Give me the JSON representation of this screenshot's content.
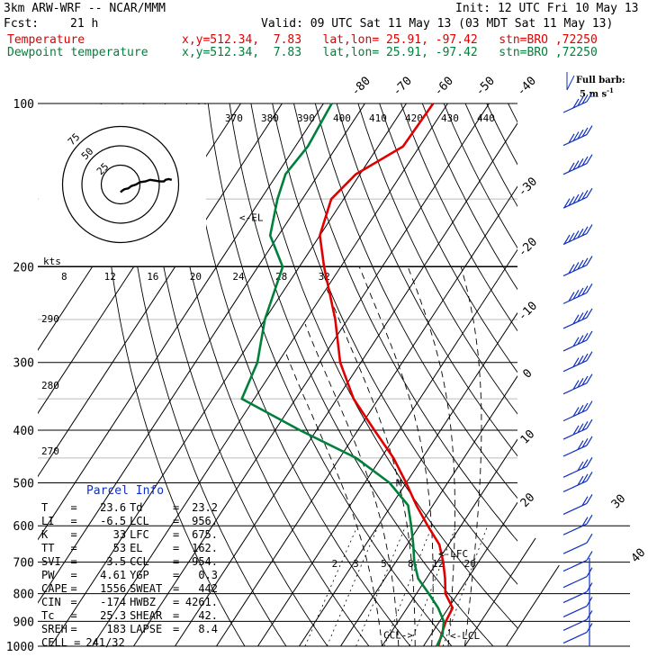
{
  "header": {
    "model": "3km ARW-WRF -- NCAR/MMM",
    "init": "Init: 12 UTC Fri 10 May 13",
    "fcst_label": "Fcst:",
    "fcst_value": "21 h",
    "valid": "Valid: 09 UTC Sat 11 May 13 (03 MDT Sat 11 May 13)",
    "temp_label": "Temperature",
    "dew_label": "Dewpoint temperature",
    "location": "x,y=512.34,  7.83   lat,lon= 25.91, -97.42   stn=BRO ,72250"
  },
  "barb_legend": {
    "line1": "Full barb:",
    "line2": "5 m s",
    "sup": "-1"
  },
  "chart_data": {
    "type": "line",
    "title": "",
    "y_axis": {
      "scale": "log",
      "label": "",
      "ticks": [
        100,
        200,
        300,
        400,
        500,
        600,
        700,
        800,
        900,
        1000
      ]
    },
    "isotherm_labels_top": [
      -80,
      -70,
      -60,
      -50,
      -40
    ],
    "isotherm_labels_right": [
      -30,
      -20,
      -10,
      0,
      10,
      20,
      30,
      40
    ],
    "theta_labels": [
      370,
      380,
      390,
      400,
      410,
      420,
      430,
      440
    ],
    "theta_labels_left": [
      290,
      280,
      270
    ],
    "mixing_ratio_labels": [
      2,
      3,
      5,
      8,
      12,
      20
    ],
    "series": [
      {
        "name": "Temperature",
        "color": "#e00000",
        "points": [
          {
            "p": 100,
            "t": -63.5
          },
          {
            "p": 120,
            "t": -64
          },
          {
            "p": 135,
            "t": -71
          },
          {
            "p": 150,
            "t": -73
          },
          {
            "p": 175,
            "t": -70
          },
          {
            "p": 200,
            "t": -64
          },
          {
            "p": 250,
            "t": -53
          },
          {
            "p": 300,
            "t": -45
          },
          {
            "p": 350,
            "t": -36
          },
          {
            "p": 400,
            "t": -26
          },
          {
            "p": 450,
            "t": -17
          },
          {
            "p": 500,
            "t": -10
          },
          {
            "p": 550,
            "t": -4
          },
          {
            "p": 600,
            "t": 2
          },
          {
            "p": 650,
            "t": 7.8
          },
          {
            "p": 700,
            "t": 11.5
          },
          {
            "p": 750,
            "t": 14.5
          },
          {
            "p": 800,
            "t": 17
          },
          {
            "p": 850,
            "t": 21
          },
          {
            "p": 900,
            "t": 21.5
          },
          {
            "p": 950,
            "t": 22.5
          },
          {
            "p": 1000,
            "t": 23.6
          }
        ]
      },
      {
        "name": "Dewpoint temperature",
        "color": "#00803a",
        "points": [
          {
            "p": 100,
            "t": -88
          },
          {
            "p": 120,
            "t": -87
          },
          {
            "p": 135,
            "t": -88
          },
          {
            "p": 150,
            "t": -86
          },
          {
            "p": 175,
            "t": -82
          },
          {
            "p": 200,
            "t": -74
          },
          {
            "p": 250,
            "t": -70
          },
          {
            "p": 300,
            "t": -65
          },
          {
            "p": 350,
            "t": -63
          },
          {
            "p": 400,
            "t": -44
          },
          {
            "p": 450,
            "t": -26
          },
          {
            "p": 500,
            "t": -14
          },
          {
            "p": 550,
            "t": -6
          },
          {
            "p": 600,
            "t": -2
          },
          {
            "p": 650,
            "t": 1.5
          },
          {
            "p": 700,
            "t": 4.5
          },
          {
            "p": 750,
            "t": 8
          },
          {
            "p": 800,
            "t": 13
          },
          {
            "p": 850,
            "t": 17.5
          },
          {
            "p": 900,
            "t": 21
          },
          {
            "p": 950,
            "t": 22.7
          },
          {
            "p": 1000,
            "t": 23.2
          }
        ]
      }
    ],
    "annotations": [
      {
        "text": "<-EL",
        "p": 162
      },
      {
        "text": "<-LFC",
        "p": 675
      },
      {
        "text": "<-LCL",
        "p": 956
      },
      {
        "text": "CCL->",
        "p": 954
      },
      {
        "text": "M",
        "p": 500
      }
    ],
    "wind_barbs": {
      "pressures": [
        100,
        115,
        130,
        150,
        175,
        200,
        225,
        250,
        275,
        300,
        330,
        370,
        400,
        430,
        470,
        500,
        550,
        600,
        650,
        700,
        750,
        800,
        850,
        900,
        950,
        1000
      ],
      "full_barbs": [
        4,
        5,
        5,
        6,
        6,
        5,
        5,
        4,
        4,
        4,
        4,
        4,
        4,
        3,
        3,
        3,
        2,
        2,
        1,
        1,
        1,
        1,
        1,
        1,
        1,
        1
      ]
    },
    "hodograph": {
      "speed_rings_kts": [
        25,
        50,
        75
      ],
      "ring_label_25": "25",
      "ring_label_50": "50",
      "ring_label_75": "75",
      "u_kts": [
        0,
        2,
        5,
        10,
        14,
        20,
        25,
        32,
        38,
        45,
        50,
        56,
        58,
        62,
        66
      ],
      "v_kts": [
        -10,
        -8,
        -6,
        -5,
        -2,
        0,
        3,
        4,
        6,
        5,
        4,
        4,
        6,
        7,
        6
      ]
    },
    "wind_speed_axis": {
      "label": "kts",
      "ticks": [
        8,
        12,
        16,
        20,
        24,
        28,
        32
      ]
    }
  },
  "parcel_info": {
    "title": "Parcel Info",
    "rows": [
      {
        "k1": "T",
        "v1": "23.6",
        "k2": "Td",
        "v2": "23.2"
      },
      {
        "k1": "LI",
        "v1": "-6.5",
        "k2": "LCL",
        "v2": "956."
      },
      {
        "k1": "K",
        "v1": "33",
        "k2": "LFC",
        "v2": "675."
      },
      {
        "k1": "TT",
        "v1": "53",
        "k2": "EL",
        "v2": "162."
      },
      {
        "k1": "SVI",
        "v1": "-3.5",
        "k2": "CCL",
        "v2": "954."
      },
      {
        "k1": "PW",
        "v1": "4.61",
        "k2": "YGP",
        "v2": "0.3"
      },
      {
        "k1": "CAPE",
        "v1": "1556",
        "k2": "SWEAT",
        "v2": "442"
      },
      {
        "k1": "CIN",
        "v1": "-174",
        "k2": "HWBZ",
        "v2": "4261."
      },
      {
        "k1": "Tc",
        "v1": "25.3",
        "k2": "SHEAR",
        "v2": "42."
      },
      {
        "k1": "SREH",
        "v1": "183",
        "k2": "LAPSE",
        "v2": "8.4"
      }
    ],
    "cell_label": "CELL =",
    "cell_value": "241/32"
  }
}
